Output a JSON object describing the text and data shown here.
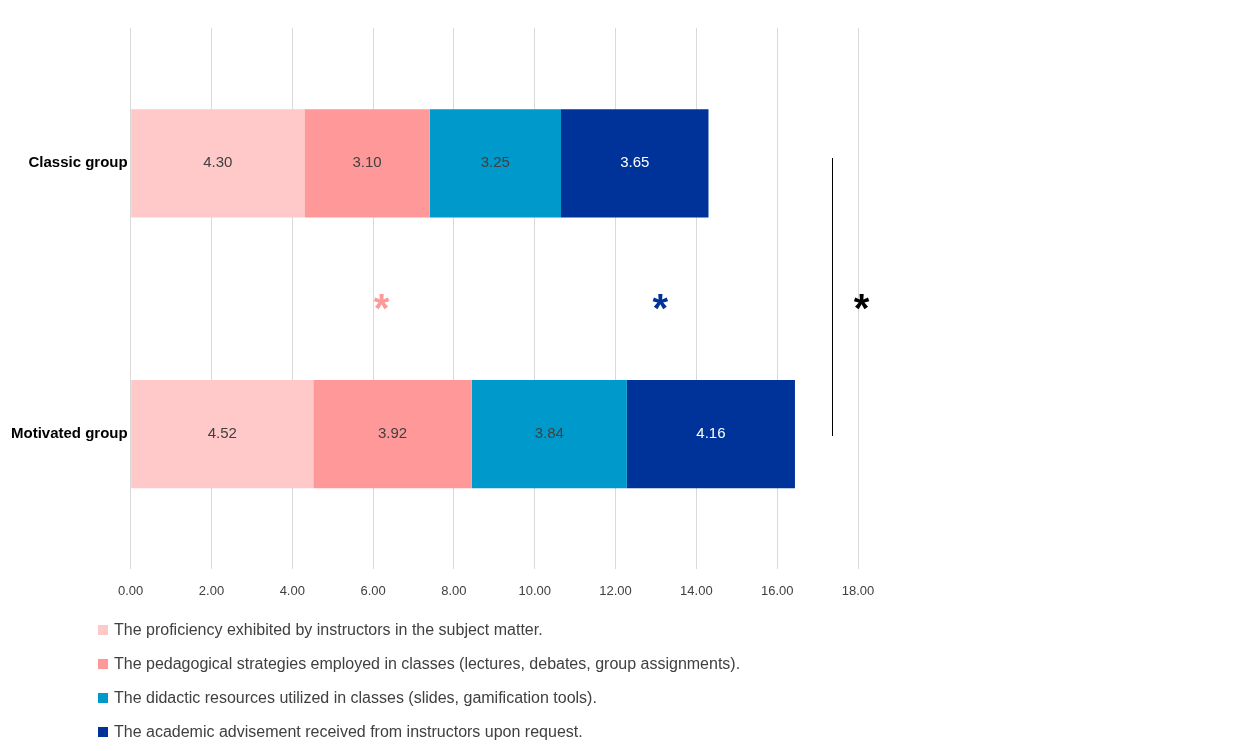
{
  "chart_data": {
    "type": "bar",
    "orientation": "horizontal",
    "stacked": true,
    "categories": [
      "Classic group",
      "Motivated group"
    ],
    "series": [
      {
        "name": "The proficiency exhibited by instructors in the subject matter.",
        "color": "#ffc9c9",
        "values": [
          4.3,
          4.52
        ],
        "value_labels": [
          "4.30",
          "4.52"
        ]
      },
      {
        "name": "The pedagogical strategies employed in classes (lectures, debates, group assignments).",
        "color": "#ff9999",
        "values": [
          3.1,
          3.92
        ],
        "value_labels": [
          "3.10",
          "3.92"
        ]
      },
      {
        "name": "The didactic resources utilized in classes (slides, gamification tools).",
        "color": "#0099cc",
        "values": [
          3.25,
          3.84
        ],
        "value_labels": [
          "3.25",
          "3.84"
        ]
      },
      {
        "name": "The academic advisement received from instructors upon request.",
        "color": "#003399",
        "values": [
          3.65,
          4.16
        ],
        "value_labels": [
          "3.65",
          "4.16"
        ]
      }
    ],
    "xlim": [
      0,
      18
    ],
    "xticks": [
      {
        "value": 0,
        "label": "0.00"
      },
      {
        "value": 2,
        "label": "2.00"
      },
      {
        "value": 4,
        "label": "4.00"
      },
      {
        "value": 6,
        "label": "6.00"
      },
      {
        "value": 8,
        "label": "8.00"
      },
      {
        "value": 10,
        "label": "10.00"
      },
      {
        "value": 12,
        "label": "12.00"
      },
      {
        "value": 14,
        "label": "14.00"
      },
      {
        "value": 16,
        "label": "16.00"
      },
      {
        "value": 18,
        "label": "18.00"
      }
    ],
    "grid": "x",
    "legend": "bottom",
    "annotations": [
      "*",
      "*",
      "*"
    ]
  }
}
